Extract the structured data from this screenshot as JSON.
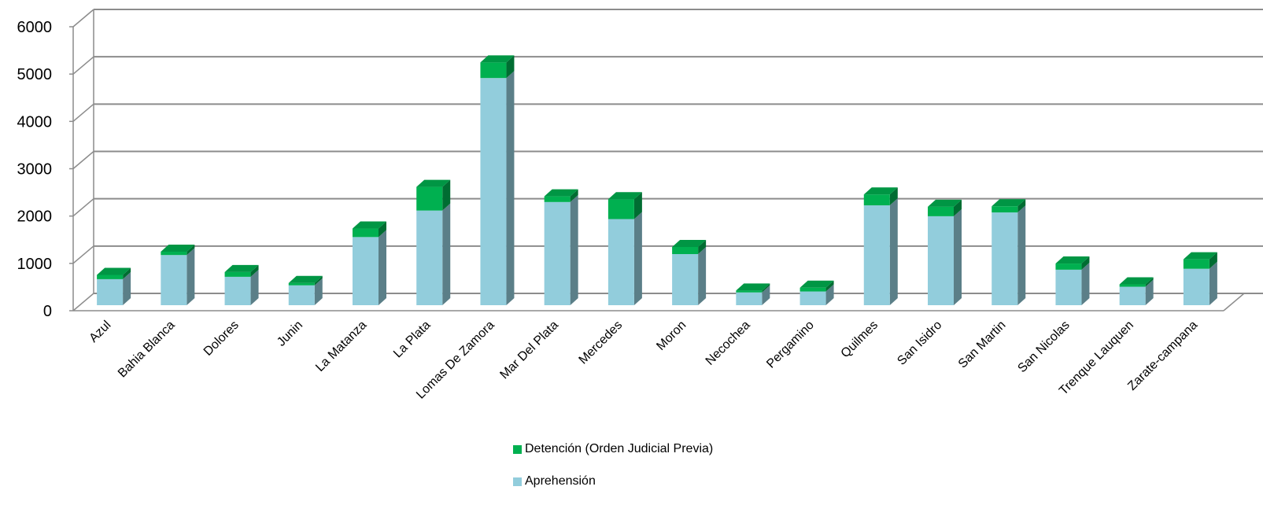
{
  "chart_data": {
    "type": "bar",
    "stacked": true,
    "three_d": true,
    "categories": [
      "Azul",
      "Bahia Blanca",
      "Dolores",
      "Junin",
      "La Matanza",
      "La Plata",
      "Lomas De Zamora",
      "Mar Del Plata",
      "Mercedes",
      "Moron",
      "Necochea",
      "Pergamino",
      "Quilmes",
      "San Isidro",
      "San Martin",
      "San Nicolas",
      "Trenque Lauquen",
      "Zarate-campana"
    ],
    "series": [
      {
        "name": "Aprehensión",
        "color": "#92CDDC",
        "values": [
          550,
          1060,
          600,
          420,
          1440,
          2000,
          4800,
          2180,
          1820,
          1080,
          270,
          290,
          2110,
          1880,
          1960,
          750,
          390,
          770
        ]
      },
      {
        "name": "Detención (Orden Judicial Previa)",
        "color": "#00B050",
        "values": [
          90,
          70,
          100,
          50,
          180,
          500,
          330,
          120,
          420,
          150,
          40,
          80,
          230,
          200,
          130,
          130,
          50,
          200
        ]
      }
    ],
    "ylim": [
      0,
      6000
    ],
    "yticks": [
      "0",
      "1000",
      "2000",
      "3000",
      "4000",
      "5000",
      "6000"
    ],
    "grid": true,
    "legend_position": "bottom"
  }
}
